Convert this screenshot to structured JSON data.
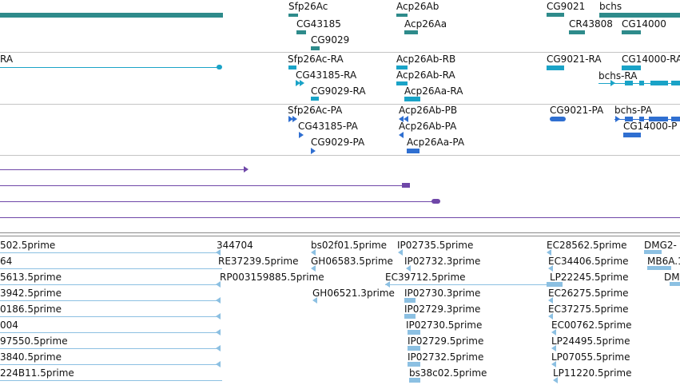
{
  "colors": {
    "gene": "#2e8b8b",
    "rna": "#1aa3c7",
    "protein": "#2f6fd1",
    "purple": "#6f47a8",
    "est": "#8cc0e2"
  },
  "gene_track": {
    "labels": [
      "Sfp26Ac",
      "CG43185",
      "CG9029",
      "Acp26Ab",
      "Acp26Aa",
      "CG9021",
      "CR43808",
      "bchs",
      "CG14000"
    ]
  },
  "rna_track": {
    "labels": [
      "RA",
      "Sfp26Ac-RA",
      "CG43185-RA",
      "CG9029-RA",
      "Acp26Ab-RB",
      "Acp26Ab-RA",
      "Acp26Aa-RA",
      "CG9021-RA",
      "CG14000-RA",
      "bchs-RA"
    ]
  },
  "protein_track": {
    "labels": [
      "Sfp26Ac-PA",
      "CG43185-PA",
      "CG9029-PA",
      "Acp26Ab-PB",
      "Acp26Ab-PA",
      "Acp26Aa-PA",
      "CG9021-PA",
      "bchs-PA",
      "CG14000-P"
    ]
  },
  "est_track": {
    "labels": [
      "502.5prime",
      "344704",
      "bs02f01.5prime",
      "IP02735.5prime",
      "EC28562.5prime",
      "DMG2-",
      "64",
      "RE37239.5prime",
      "GH06583.5prime",
      "IP02732.3prime",
      "EC34406.5prime",
      "MB6A.1",
      "5613.5prime",
      "RP003159885.5prime",
      "EC39712.5prime",
      "LP22245.5prime",
      "DM",
      "3942.5prime",
      "GH06521.3prime",
      "IP02730.3prime",
      "EC26275.5prime",
      "0186.5prime",
      "IP02729.3prime",
      "EC37275.5prime",
      "004",
      "IP02730.5prime",
      "EC00762.5prime",
      "97550.5prime",
      "IP02729.5prime",
      "LP24495.5prime",
      "3840.5prime",
      "IP02732.5prime",
      "LP07055.5prime",
      "224B11.5prime",
      "bs38c02.5prime",
      "LP11220.5prime"
    ]
  }
}
